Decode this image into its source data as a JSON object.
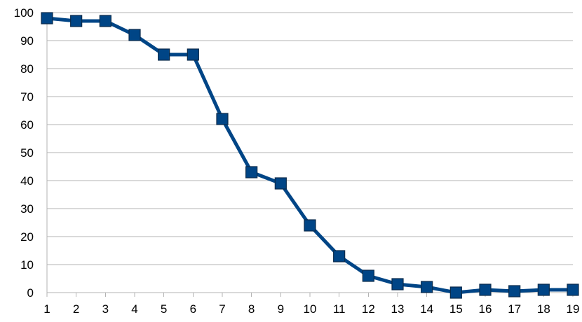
{
  "chart_data": {
    "type": "line",
    "title": "",
    "xlabel": "",
    "ylabel": "",
    "x": [
      1,
      2,
      3,
      4,
      5,
      6,
      7,
      8,
      9,
      10,
      11,
      12,
      13,
      14,
      15,
      16,
      17,
      18,
      19
    ],
    "series": [
      {
        "values": [
          98,
          97,
          97,
          92,
          85,
          85,
          62,
          43,
          39,
          24,
          13,
          6,
          3,
          2,
          0,
          1,
          0.5,
          1,
          1
        ]
      }
    ],
    "xlim": [
      1,
      19
    ],
    "ylim": [
      0,
      100
    ],
    "yticks": [
      0,
      10,
      20,
      30,
      40,
      50,
      60,
      70,
      80,
      90,
      100
    ],
    "grid": "horizontal",
    "legend": "none",
    "colors": {
      "line": "#004586",
      "marker_fill": "#004586",
      "marker_edge": "#0a2a4a",
      "grid": "#b3b3b3",
      "axis": "#b3b3b3"
    }
  }
}
